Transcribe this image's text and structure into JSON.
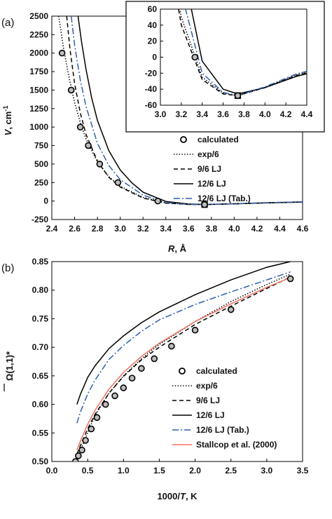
{
  "chart_data": [
    {
      "id": "a",
      "type": "line",
      "panel_label": "(a)",
      "xlabel_var": "R",
      "xlabel_unit": ", Å",
      "ylabel_var": "V",
      "ylabel_unit": ", cm",
      "ylabel_sup": "-1",
      "xlim": [
        2.4,
        4.6
      ],
      "ylim": [
        -250,
        2500
      ],
      "xticks": [
        "2.4",
        "2.6",
        "2.8",
        "3.0",
        "3.2",
        "3.4",
        "3.6",
        "3.8",
        "4.0",
        "4.2",
        "4.4",
        "4.6"
      ],
      "yticks": [
        "-250",
        "0",
        "250",
        "500",
        "750",
        "1000",
        "1250",
        "1500",
        "1750",
        "2000",
        "2250",
        "2500"
      ],
      "legend": [
        "calculated",
        "exp/6",
        "9/6 LJ",
        "12/6 LJ",
        "12/6 LJ (Tab.)"
      ],
      "series": [
        {
          "name": "calculated",
          "style": "circle",
          "x": [
            2.49,
            2.57,
            2.65,
            2.72,
            2.82,
            2.98,
            3.33,
            3.74
          ],
          "y": [
            2000,
            1500,
            1000,
            750,
            500,
            250,
            0,
            -48
          ]
        },
        {
          "name": "exp/6",
          "style": "dotted",
          "color": "#000000",
          "x": [
            2.46,
            2.5,
            2.55,
            2.6,
            2.65,
            2.7,
            2.8,
            2.9,
            3.0,
            3.2,
            3.4,
            3.6,
            3.74,
            4.0,
            4.3,
            4.6
          ],
          "y": [
            2500,
            2090,
            1680,
            1330,
            1060,
            840,
            530,
            330,
            200,
            50,
            -25,
            -45,
            -48,
            -38,
            -22,
            -12
          ]
        },
        {
          "name": "9/6 LJ",
          "style": "dashed",
          "color": "#000000",
          "x": [
            2.53,
            2.56,
            2.6,
            2.65,
            2.7,
            2.8,
            2.9,
            3.0,
            3.2,
            3.4,
            3.6,
            3.74,
            4.0,
            4.3,
            4.6
          ],
          "y": [
            2500,
            2050,
            1590,
            1190,
            900,
            540,
            320,
            190,
            40,
            -28,
            -46,
            -48,
            -38,
            -23,
            -13
          ]
        },
        {
          "name": "12/6 LJ",
          "style": "solid",
          "color": "#000000",
          "x": [
            2.63,
            2.66,
            2.7,
            2.75,
            2.8,
            2.9,
            3.0,
            3.1,
            3.2,
            3.4,
            3.6,
            3.74,
            4.0,
            4.3,
            4.6
          ],
          "y": [
            2500,
            2160,
            1780,
            1390,
            1090,
            680,
            420,
            250,
            120,
            -5,
            -40,
            -46,
            -38,
            -24,
            -14
          ]
        },
        {
          "name": "12/6 LJ (Tab.)",
          "style": "dashdot",
          "color": "#2F5FAE",
          "x": [
            2.57,
            2.6,
            2.65,
            2.7,
            2.8,
            2.9,
            3.0,
            3.2,
            3.4,
            3.6,
            3.74,
            4.0,
            4.3,
            4.6
          ],
          "y": [
            2500,
            2110,
            1630,
            1280,
            780,
            480,
            290,
            80,
            -20,
            -44,
            -48,
            -37,
            -21,
            -11
          ]
        }
      ],
      "inset": {
        "xlim": [
          3.0,
          4.4
        ],
        "ylim": [
          -60,
          60
        ],
        "xticks": [
          "3.0",
          "3.2",
          "3.4",
          "3.6",
          "3.8",
          "4.0",
          "4.2",
          "4.4"
        ],
        "yticks": [
          "60",
          "40",
          "20",
          "0",
          "-20",
          "-40",
          "-60"
        ]
      }
    },
    {
      "id": "b",
      "type": "line",
      "panel_label": "(b)",
      "xlabel_pre": "1000/",
      "xlabel_var": "T",
      "xlabel_unit": ", K",
      "ylabel_sym": "Ω",
      "ylabel_rest": "(1,1)*",
      "xlim": [
        0.0,
        3.5
      ],
      "ylim": [
        0.5,
        0.85
      ],
      "xticks": [
        "0.0",
        "0.5",
        "1.0",
        "1.5",
        "2.0",
        "2.5",
        "3.0",
        "3.5"
      ],
      "yticks": [
        "0.50",
        "0.55",
        "0.60",
        "0.65",
        "0.70",
        "0.75",
        "0.80",
        "0.85"
      ],
      "legend": [
        "calculated",
        "exp/6",
        "9/6 LJ",
        "12/6 LJ",
        "12/6 LJ (Tab.)",
        "Stallcop et al. (2000)"
      ],
      "series": [
        {
          "name": "calculated",
          "style": "circle",
          "x": [
            0.33,
            0.37,
            0.42,
            0.47,
            0.55,
            0.63,
            0.75,
            0.88,
            1.0,
            1.12,
            1.25,
            1.43,
            1.67,
            2.0,
            2.5,
            3.33
          ],
          "y": [
            0.5,
            0.51,
            0.52,
            0.537,
            0.557,
            0.577,
            0.6,
            0.615,
            0.629,
            0.646,
            0.663,
            0.68,
            0.702,
            0.73,
            0.766,
            0.82
          ]
        },
        {
          "name": "exp/6",
          "style": "dotted",
          "color": "#000000",
          "x": [
            0.35,
            0.4,
            0.5,
            0.6,
            0.8,
            1.0,
            1.25,
            1.5,
            2.0,
            2.5,
            3.0,
            3.33
          ],
          "y": [
            0.505,
            0.52,
            0.55,
            0.58,
            0.62,
            0.65,
            0.68,
            0.705,
            0.745,
            0.78,
            0.81,
            0.828
          ]
        },
        {
          "name": "9/6 LJ",
          "style": "dashed",
          "color": "#000000",
          "x": [
            0.35,
            0.4,
            0.5,
            0.6,
            0.8,
            1.0,
            1.25,
            1.5,
            2.0,
            2.5,
            3.0,
            3.33
          ],
          "y": [
            0.513,
            0.528,
            0.557,
            0.582,
            0.62,
            0.649,
            0.678,
            0.7,
            0.74,
            0.772,
            0.803,
            0.823
          ]
        },
        {
          "name": "12/6 LJ",
          "style": "solid",
          "color": "#000000",
          "x": [
            0.35,
            0.4,
            0.5,
            0.6,
            0.8,
            1.0,
            1.25,
            1.5,
            2.0,
            2.5,
            3.0,
            3.33
          ],
          "y": [
            0.6,
            0.618,
            0.647,
            0.667,
            0.698,
            0.72,
            0.743,
            0.762,
            0.792,
            0.818,
            0.84,
            0.85
          ]
        },
        {
          "name": "12/6 LJ (Tab.)",
          "style": "dashdot",
          "color": "#2F5FAE",
          "x": [
            0.35,
            0.4,
            0.5,
            0.6,
            0.8,
            1.0,
            1.25,
            1.5,
            2.0,
            2.5,
            3.0,
            3.33
          ],
          "y": [
            0.567,
            0.587,
            0.618,
            0.642,
            0.679,
            0.703,
            0.728,
            0.748,
            0.775,
            0.797,
            0.818,
            0.832
          ]
        },
        {
          "name": "Stallcop et al. (2000)",
          "style": "solid",
          "color": "#F07060",
          "x": [
            0.35,
            0.4,
            0.5,
            0.6,
            0.8,
            1.0,
            1.25,
            1.5,
            2.0,
            2.5,
            3.0,
            3.33
          ],
          "y": [
            0.52,
            0.536,
            0.565,
            0.589,
            0.627,
            0.656,
            0.684,
            0.707,
            0.745,
            0.776,
            0.805,
            0.822
          ]
        }
      ]
    }
  ]
}
